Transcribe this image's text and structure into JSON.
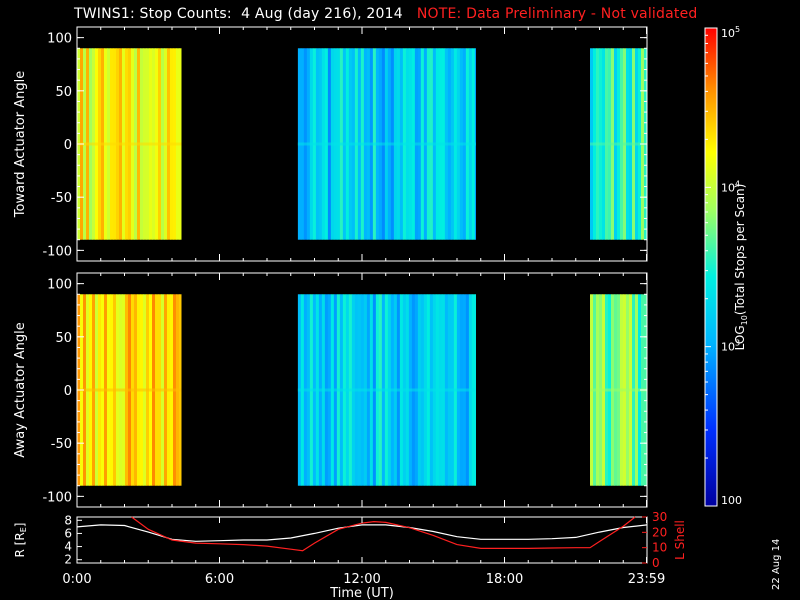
{
  "title": {
    "main": "TWINS1: Stop Counts:  4 Aug (day 216), 2014",
    "note": "NOTE: Data Preliminary - Not validated"
  },
  "date_stamp": "22 Aug 14",
  "colors": {
    "background": "#000000",
    "axes": "#ffffff",
    "note": "#ff2020",
    "radius_line": "#ffffff",
    "lshell_line": "#ff2020"
  },
  "chart_data": [
    {
      "type": "heatmap",
      "ylabel": "Toward Actuator Angle",
      "ylim": [
        -110,
        110
      ],
      "yticks": [
        -100,
        -50,
        0,
        50,
        100
      ],
      "angle_range": [
        -90,
        90
      ],
      "xlim": [
        0,
        24
      ],
      "data_gaps": [
        [
          4.4,
          9.3
        ],
        [
          16.8,
          21.6
        ]
      ],
      "segments": [
        {
          "x_start": 0.0,
          "x_end": 4.4,
          "typical_log_counts": 4.2
        },
        {
          "x_start": 9.3,
          "x_end": 16.8,
          "typical_log_counts": 3.2
        },
        {
          "x_start": 21.6,
          "x_end": 24.0,
          "typical_log_counts": 3.5
        }
      ]
    },
    {
      "type": "heatmap",
      "ylabel": "Away Actuator Angle",
      "ylim": [
        -110,
        110
      ],
      "yticks": [
        -100,
        -50,
        0,
        50,
        100
      ],
      "angle_range": [
        -90,
        90
      ],
      "xlim": [
        0,
        24
      ],
      "data_gaps": [
        [
          4.4,
          9.3
        ],
        [
          16.8,
          21.6
        ]
      ],
      "segments": [
        {
          "x_start": 0.0,
          "x_end": 4.4,
          "typical_log_counts": 4.3
        },
        {
          "x_start": 9.3,
          "x_end": 16.8,
          "typical_log_counts": 3.2
        },
        {
          "x_start": 21.6,
          "x_end": 24.0,
          "typical_log_counts": 3.7
        }
      ]
    },
    {
      "type": "line",
      "ylabel_left": "R [R",
      "ylabel_left_sub": "E",
      "ylabel_left_close": "]",
      "ylabel_right": "L Shell",
      "left_yticks": [
        2,
        4,
        6,
        8
      ],
      "left_ylim": [
        1.5,
        8.5
      ],
      "right_yticks": [
        0,
        10,
        20,
        30
      ],
      "right_ylim": [
        0,
        30
      ],
      "xlim": [
        0,
        24
      ],
      "xlabel": "Time (UT)",
      "xtick_labels": [
        "0:00",
        "6:00",
        "12:00",
        "18:00",
        "23:59"
      ],
      "xtick_values": [
        0,
        6,
        12,
        18,
        23.98
      ],
      "series": [
        {
          "axis": "left",
          "x": [
            0,
            1,
            2,
            3,
            4,
            5,
            6,
            7,
            8,
            9,
            10,
            11,
            12,
            13,
            14,
            15,
            16,
            17,
            18,
            19,
            20,
            21,
            22,
            23,
            24
          ],
          "values": [
            7.0,
            7.3,
            7.2,
            6.2,
            5.1,
            4.8,
            4.9,
            5.0,
            5.0,
            5.3,
            6.0,
            6.8,
            7.3,
            7.3,
            6.9,
            6.3,
            5.5,
            5.1,
            5.1,
            5.1,
            5.2,
            5.4,
            6.2,
            6.9,
            7.3
          ]
        },
        {
          "axis": "right",
          "x": [
            2.3,
            3,
            4,
            5,
            6,
            7,
            8,
            9,
            9.5,
            10,
            11,
            12,
            12.5,
            13,
            14,
            15,
            16,
            17,
            18,
            19,
            20,
            21,
            21.6,
            22,
            23,
            23.5
          ],
          "values": [
            30,
            22,
            15,
            13,
            12.5,
            12,
            11,
            9,
            8,
            13,
            22,
            26,
            27,
            26.5,
            23,
            18,
            12,
            9.5,
            9.5,
            9.5,
            9.8,
            10,
            10,
            14,
            24,
            30
          ]
        }
      ]
    }
  ],
  "colorbar": {
    "label": "LOG",
    "label_sub": "10",
    "label_rest": "(Total Stops per Scan)",
    "range_log": [
      2,
      5
    ],
    "tick_labels": [
      "10",
      "10",
      "10",
      "100"
    ],
    "tick_superscripts": [
      "5",
      "4",
      "3",
      ""
    ],
    "tick_values_log": [
      5,
      4,
      3,
      2
    ]
  }
}
